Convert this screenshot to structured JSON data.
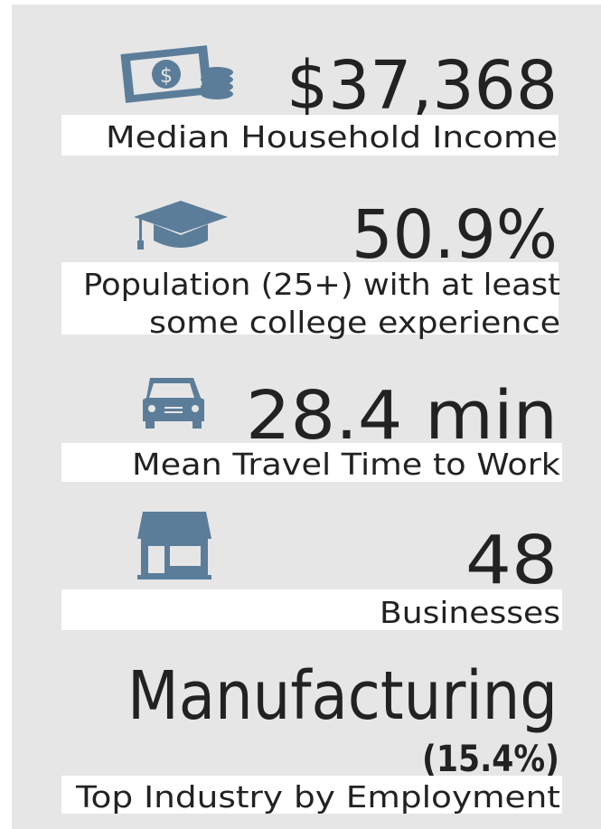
{
  "stats": [
    {
      "value": "$37,368",
      "label": [
        "Median Household Income"
      ]
    },
    {
      "value": "50.9%",
      "label": [
        "Population (25+) with at least",
        "some college experience"
      ]
    },
    {
      "value": "28.4 min",
      "label": [
        "Mean Travel Time to Work"
      ]
    },
    {
      "value": "48",
      "label": [
        "Businesses"
      ]
    },
    {
      "value": "Manufacturing",
      "detail": "(15.4%)",
      "label": [
        "Top Industry by Employment"
      ]
    }
  ]
}
